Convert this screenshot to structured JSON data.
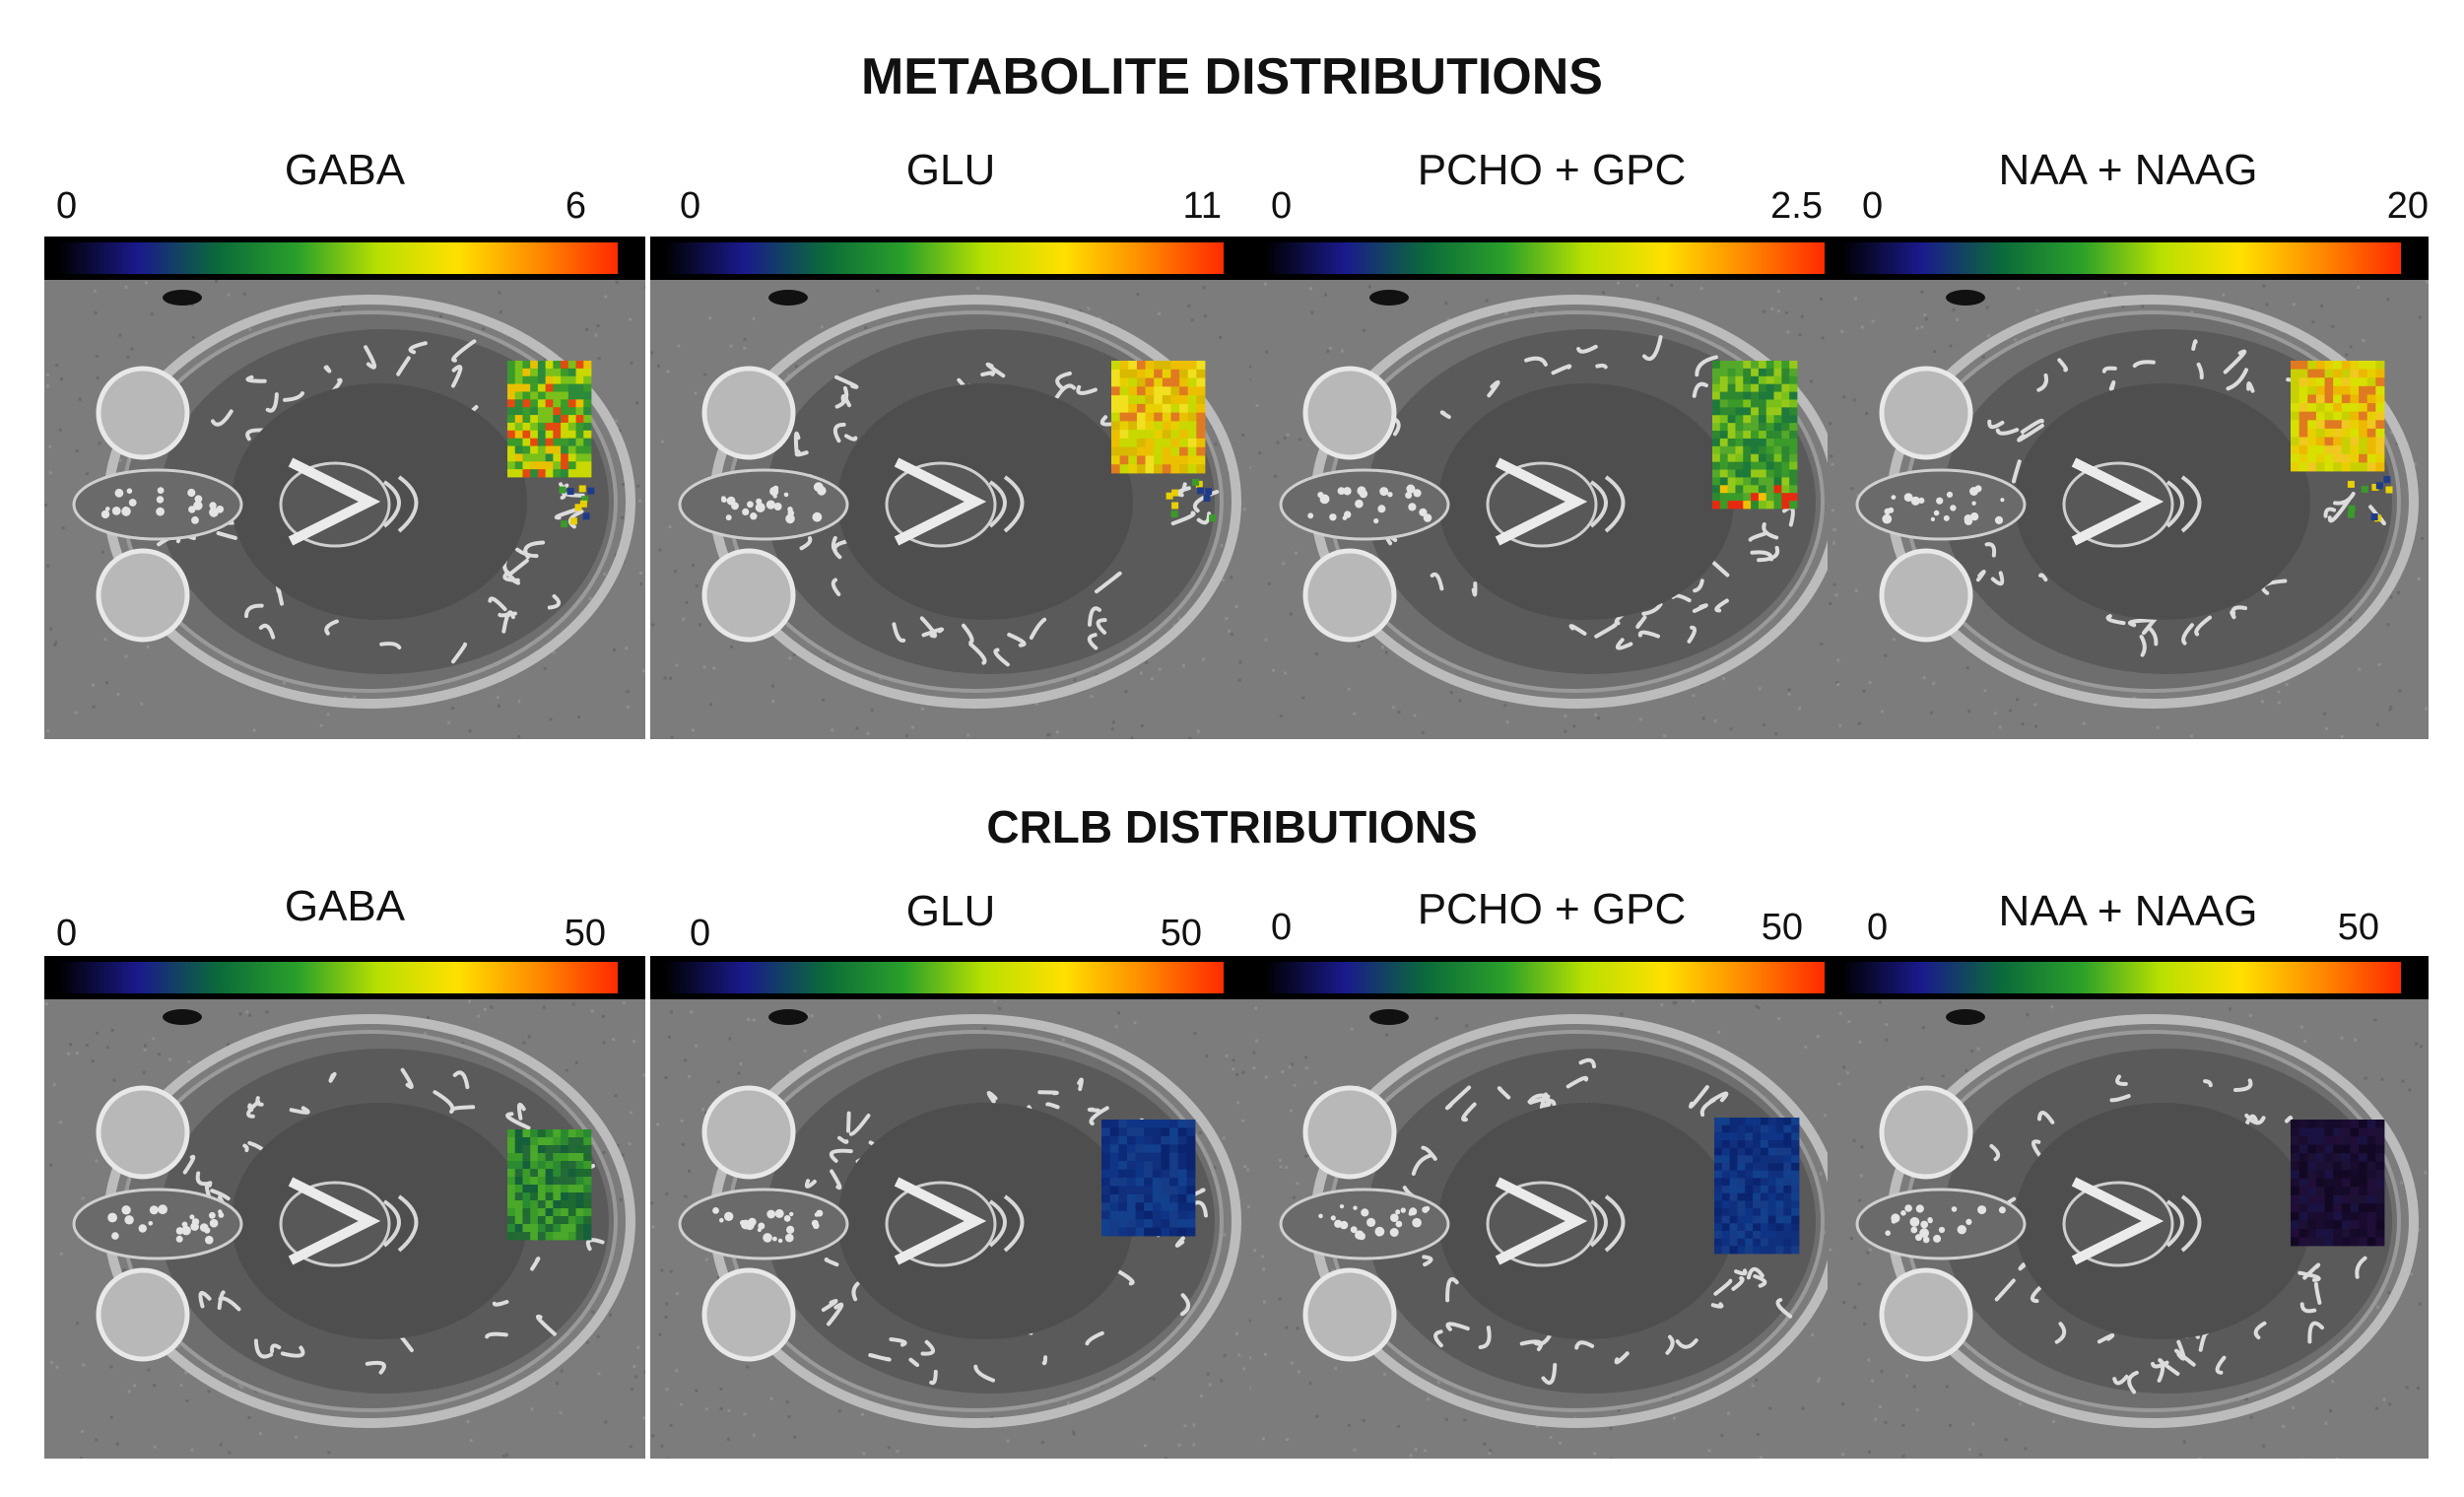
{
  "sections": [
    {
      "title": "METABOLITE DISTRIBUTIONS",
      "panels": [
        {
          "label": "GABA",
          "min": "0",
          "max": "6",
          "overlay": "gaba_conc"
        },
        {
          "label": "GLU",
          "min": "0",
          "max": "11",
          "overlay": "glu_conc"
        },
        {
          "label": "PCHO + GPC",
          "min": "0",
          "max": "2.5",
          "overlay": "cho_conc"
        },
        {
          "label": "NAA + NAAG",
          "min": "0",
          "max": "20",
          "overlay": "naa_conc"
        }
      ]
    },
    {
      "title": "CRLB DISTRIBUTIONS",
      "panels": [
        {
          "label": "GABA",
          "min": "0",
          "max": "50",
          "overlay": "gaba_crlb"
        },
        {
          "label": "GLU",
          "min": "0",
          "max": "50",
          "overlay": "glu_crlb"
        },
        {
          "label": "PCHO + GPC",
          "min": "0",
          "max": "50",
          "overlay": "cho_crlb"
        },
        {
          "label": "NAA + NAAG",
          "min": "0",
          "max": "50",
          "overlay": "naa_crlb"
        }
      ]
    }
  ],
  "colormap": [
    "#000000",
    "#1a1a8c",
    "#0b6a3a",
    "#2aa02a",
    "#b8e000",
    "#ffe000",
    "#ff8a00",
    "#ff2a00"
  ]
}
